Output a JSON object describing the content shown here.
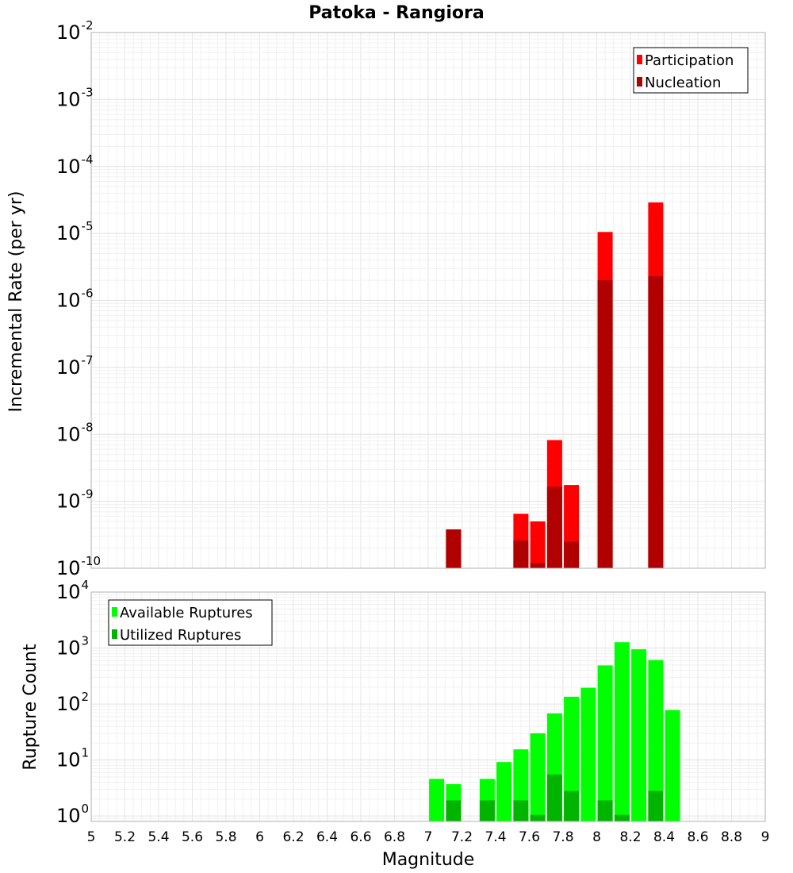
{
  "chart_data": {
    "title": "Patoka - Rangiora",
    "xlabel": "Magnitude",
    "xlim": [
      5,
      9
    ],
    "x_ticks": [
      "5",
      "5.2",
      "5.4",
      "5.6",
      "5.8",
      "6",
      "6.2",
      "6.4",
      "6.6",
      "6.8",
      "7",
      "7.2",
      "7.4",
      "7.6",
      "7.8",
      "8",
      "8.2",
      "8.4",
      "8.6",
      "8.8",
      "9"
    ],
    "panels": [
      {
        "type": "bar",
        "ylabel": "Incremental Rate (per yr)",
        "yscale": "log",
        "ylim": [
          1e-10,
          0.01
        ],
        "y_ticks": [
          {
            "base": "10",
            "exp": "-10"
          },
          {
            "base": "10",
            "exp": "-9"
          },
          {
            "base": "10",
            "exp": "-8"
          },
          {
            "base": "10",
            "exp": "-7"
          },
          {
            "base": "10",
            "exp": "-6"
          },
          {
            "base": "10",
            "exp": "-5"
          },
          {
            "base": "10",
            "exp": "-4"
          },
          {
            "base": "10",
            "exp": "-3"
          },
          {
            "base": "10",
            "exp": "-2"
          }
        ],
        "legend_position": "top-right",
        "series": [
          {
            "name": "Participation",
            "color": "#ff0000",
            "x": [
              7.15,
              7.55,
              7.65,
              7.75,
              7.85,
              8.05,
              8.35
            ],
            "values": [
              3.8e-10,
              6.5e-10,
              5e-10,
              8.2e-09,
              1.75e-09,
              1.05e-05,
              2.9e-05
            ]
          },
          {
            "name": "Nucleation",
            "color": "#b00000",
            "x": [
              7.15,
              7.55,
              7.65,
              7.75,
              7.85,
              8.05,
              8.35
            ],
            "values": [
              3.8e-10,
              2.6e-10,
              1.2e-10,
              1.65e-09,
              2.5e-10,
              2e-06,
              2.3e-06
            ]
          }
        ]
      },
      {
        "type": "bar",
        "ylabel": "Rupture Count",
        "yscale": "log",
        "ylim": [
          0.8,
          10000
        ],
        "y_ticks": [
          {
            "base": "10",
            "exp": "0"
          },
          {
            "base": "10",
            "exp": "1"
          },
          {
            "base": "10",
            "exp": "2"
          },
          {
            "base": "10",
            "exp": "3"
          },
          {
            "base": "10",
            "exp": "4"
          }
        ],
        "legend_position": "top-left",
        "series": [
          {
            "name": "Available Ruptures",
            "color": "#00ff00",
            "x": [
              7.05,
              7.15,
              7.35,
              7.45,
              7.55,
              7.65,
              7.75,
              7.85,
              7.95,
              8.05,
              8.15,
              8.25,
              8.35,
              8.45
            ],
            "values": [
              4.6,
              3.7,
              4.6,
              9.2,
              15.5,
              30,
              68,
              135,
              195,
              490,
              1270,
              950,
              610,
              78
            ]
          },
          {
            "name": "Utilized Ruptures",
            "color": "#00b400",
            "x": [
              7.15,
              7.35,
              7.55,
              7.65,
              7.75,
              7.85,
              8.05,
              8.15,
              8.35
            ],
            "values": [
              1.9,
              1.9,
              1.9,
              1.05,
              5.5,
              2.8,
              1.9,
              1.05,
              2.8
            ]
          }
        ]
      }
    ]
  }
}
